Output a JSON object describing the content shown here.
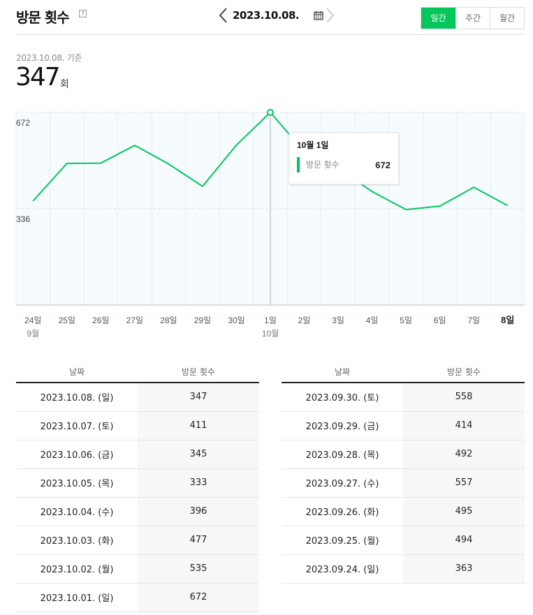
{
  "header": {
    "title": "방문 횟수",
    "help": "?",
    "date": "2023.10.08.",
    "period_tabs": [
      "일간",
      "주간",
      "월간"
    ],
    "active_tab": 0
  },
  "summary": {
    "basis": "2023.10.08. 기준",
    "value": "347",
    "unit": "회"
  },
  "chart_data": {
    "type": "line",
    "x": [
      "24일",
      "25일",
      "26일",
      "27일",
      "28일",
      "29일",
      "30일",
      "1일",
      "2일",
      "3일",
      "4일",
      "5일",
      "6일",
      "7일",
      "8일"
    ],
    "month_labels": [
      {
        "index": 0,
        "label": "9월"
      },
      {
        "index": 7,
        "label": "10월"
      }
    ],
    "series": [
      {
        "values": [
          363,
          494,
          495,
          557,
          492,
          414,
          558,
          672,
          535,
          477,
          396,
          333,
          345,
          411,
          347
        ]
      }
    ],
    "y_tick_labels": [
      "672",
      "336"
    ],
    "ylim": [
      0,
      672
    ],
    "highlight_index": 7,
    "bold_last_label": true,
    "grid": true,
    "tooltip": {
      "title": "10월 1일",
      "label": "방문 횟수",
      "value": "672"
    },
    "color": "#03c75a",
    "background": "#f5fbff"
  },
  "table_headers": {
    "date": "날짜",
    "value": "방문 횟수"
  },
  "table_left": [
    {
      "date": "2023.10.08. (일)",
      "value": "347"
    },
    {
      "date": "2023.10.07. (토)",
      "value": "411"
    },
    {
      "date": "2023.10.06. (금)",
      "value": "345"
    },
    {
      "date": "2023.10.05. (목)",
      "value": "333"
    },
    {
      "date": "2023.10.04. (수)",
      "value": "396"
    },
    {
      "date": "2023.10.03. (화)",
      "value": "477"
    },
    {
      "date": "2023.10.02. (월)",
      "value": "535"
    },
    {
      "date": "2023.10.01. (일)",
      "value": "672"
    }
  ],
  "table_right": [
    {
      "date": "2023.09.30. (토)",
      "value": "558"
    },
    {
      "date": "2023.09.29. (금)",
      "value": "414"
    },
    {
      "date": "2023.09.28. (목)",
      "value": "492"
    },
    {
      "date": "2023.09.27. (수)",
      "value": "557"
    },
    {
      "date": "2023.09.26. (화)",
      "value": "495"
    },
    {
      "date": "2023.09.25. (월)",
      "value": "494"
    },
    {
      "date": "2023.09.24. (일)",
      "value": "363"
    }
  ]
}
